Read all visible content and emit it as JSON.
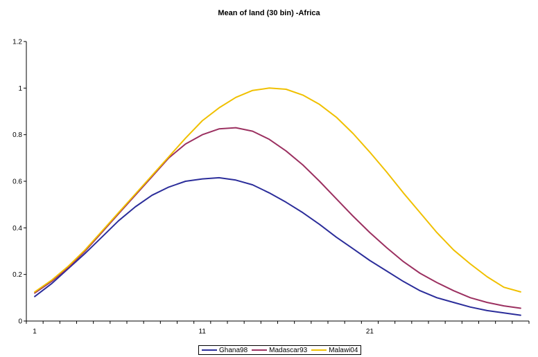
{
  "chart_data": {
    "type": "line",
    "title": "Mean of  land (30 bin) -Africa",
    "xlabel": "",
    "ylabel": "",
    "xlim": [
      1,
      30
    ],
    "ylim": [
      0,
      1.2
    ],
    "y_ticks": [
      "0",
      "0.2",
      "0.4",
      "0.6",
      "0.8",
      "1",
      "1.2"
    ],
    "x_tick_labels": [
      {
        "at": 1,
        "label": "1"
      },
      {
        "at": 11,
        "label": "11"
      },
      {
        "at": 21,
        "label": "21"
      }
    ],
    "grid": false,
    "legend_position": "bottom",
    "x": [
      1,
      2,
      3,
      4,
      5,
      6,
      7,
      8,
      9,
      10,
      11,
      12,
      13,
      14,
      15,
      16,
      17,
      18,
      19,
      20,
      21,
      22,
      23,
      24,
      25,
      26,
      27,
      28,
      29,
      30
    ],
    "series": [
      {
        "name": "Ghana98",
        "color": "#2b2d9a",
        "values": [
          0.105,
          0.16,
          0.225,
          0.29,
          0.36,
          0.43,
          0.49,
          0.54,
          0.575,
          0.6,
          0.61,
          0.615,
          0.605,
          0.585,
          0.55,
          0.51,
          0.465,
          0.415,
          0.36,
          0.31,
          0.26,
          0.215,
          0.17,
          0.13,
          0.1,
          0.08,
          0.06,
          0.045,
          0.035,
          0.025
        ]
      },
      {
        "name": "Madascar93",
        "color": "#9b3060",
        "values": [
          0.12,
          0.17,
          0.23,
          0.3,
          0.38,
          0.46,
          0.54,
          0.62,
          0.7,
          0.76,
          0.8,
          0.825,
          0.83,
          0.815,
          0.78,
          0.73,
          0.67,
          0.6,
          0.525,
          0.45,
          0.38,
          0.315,
          0.255,
          0.205,
          0.165,
          0.13,
          0.1,
          0.08,
          0.065,
          0.055
        ]
      },
      {
        "name": "Malawi04",
        "color": "#f0c000",
        "values": [
          0.125,
          0.175,
          0.235,
          0.305,
          0.385,
          0.465,
          0.545,
          0.625,
          0.705,
          0.785,
          0.86,
          0.915,
          0.96,
          0.99,
          1.0,
          0.995,
          0.97,
          0.93,
          0.875,
          0.805,
          0.725,
          0.64,
          0.55,
          0.465,
          0.38,
          0.305,
          0.245,
          0.19,
          0.145,
          0.125
        ]
      }
    ]
  }
}
